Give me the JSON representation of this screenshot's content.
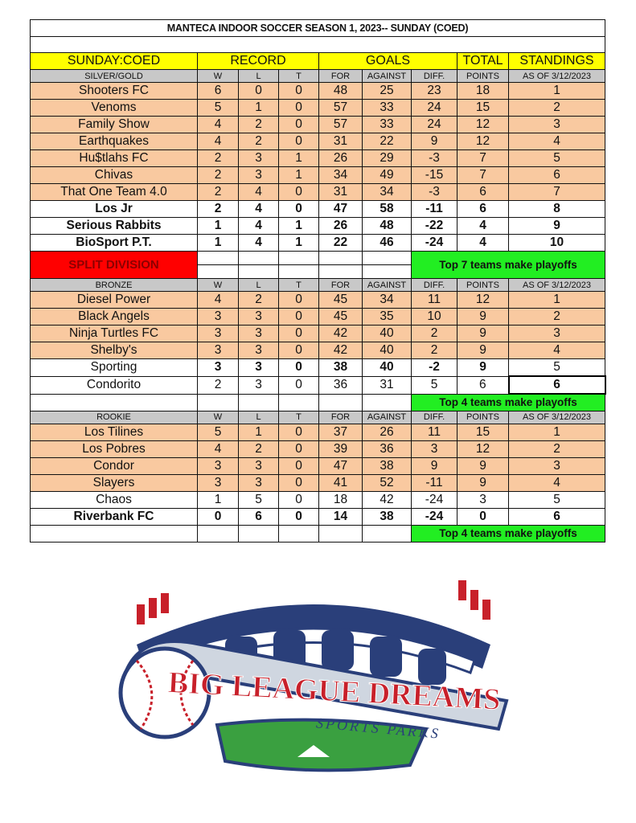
{
  "title": "MANTECA INDOOR SOCCER SEASON 1, 2023-- SUNDAY (COED)",
  "header": {
    "league": "SUNDAY:COED",
    "record": "RECORD",
    "goals": "GOALS",
    "total": "TOTAL",
    "standings": "STANDINGS"
  },
  "columns": [
    "W",
    "L",
    "T",
    "FOR",
    "AGAINST",
    "DIFF.",
    "POINTS",
    "AS OF 3/12/2023"
  ],
  "divisions": [
    {
      "name": "SILVER/GOLD",
      "teams": [
        {
          "team": "Shooters FC",
          "w": 6,
          "l": 0,
          "t": 0,
          "for": 48,
          "against": 25,
          "diff": 23,
          "points": 18,
          "standing": 1,
          "style": "orange"
        },
        {
          "team": "Venoms",
          "w": 5,
          "l": 1,
          "t": 0,
          "for": 57,
          "against": 33,
          "diff": 24,
          "points": 15,
          "standing": 2,
          "style": "orange"
        },
        {
          "team": "Family Show",
          "w": 4,
          "l": 2,
          "t": 0,
          "for": 57,
          "against": 33,
          "diff": 24,
          "points": 12,
          "standing": 3,
          "style": "orange"
        },
        {
          "team": "Earthquakes",
          "w": 4,
          "l": 2,
          "t": 0,
          "for": 31,
          "against": 22,
          "diff": 9,
          "points": 12,
          "standing": 4,
          "style": "orange"
        },
        {
          "team": "Hu$tlahs FC",
          "w": 2,
          "l": 3,
          "t": 1,
          "for": 26,
          "against": 29,
          "diff": -3,
          "points": 7,
          "standing": 5,
          "style": "orange"
        },
        {
          "team": "Chivas",
          "w": 2,
          "l": 3,
          "t": 1,
          "for": 34,
          "against": 49,
          "diff": -15,
          "points": 7,
          "standing": 6,
          "style": "orange"
        },
        {
          "team": "That One Team 4.0",
          "w": 2,
          "l": 4,
          "t": 0,
          "for": 31,
          "against": 34,
          "diff": -3,
          "points": 6,
          "standing": 7,
          "style": "orange"
        },
        {
          "team": "Los Jr",
          "w": 2,
          "l": 4,
          "t": 0,
          "for": 47,
          "against": 58,
          "diff": -11,
          "points": 6,
          "standing": 8,
          "style": "bold"
        },
        {
          "team": "Serious Rabbits",
          "w": 1,
          "l": 4,
          "t": 1,
          "for": 26,
          "against": 48,
          "diff": -22,
          "points": 4,
          "standing": 9,
          "style": "bold"
        },
        {
          "team": "BioSport P.T.",
          "w": 1,
          "l": 4,
          "t": 1,
          "for": 22,
          "against": 46,
          "diff": -24,
          "points": 4,
          "standing": 10,
          "style": "bold"
        }
      ],
      "split_label": "SPLIT DIVISION",
      "note": "Top 7 teams make playoffs"
    },
    {
      "name": "BRONZE",
      "teams": [
        {
          "team": "Diesel Power",
          "w": 4,
          "l": 2,
          "t": 0,
          "for": 45,
          "against": 34,
          "diff": 11,
          "points": 12,
          "standing": 1,
          "style": "orange"
        },
        {
          "team": "Black Angels",
          "w": 3,
          "l": 3,
          "t": 0,
          "for": 45,
          "against": 35,
          "diff": 10,
          "points": 9,
          "standing": 2,
          "style": "orange"
        },
        {
          "team": "Ninja Turtles FC",
          "w": 3,
          "l": 3,
          "t": 0,
          "for": 42,
          "against": 40,
          "diff": 2,
          "points": 9,
          "standing": 3,
          "style": "orange"
        },
        {
          "team": "Shelby's",
          "w": 3,
          "l": 3,
          "t": 0,
          "for": 42,
          "against": 40,
          "diff": 2,
          "points": 9,
          "standing": 4,
          "style": "orange"
        },
        {
          "team": "Sporting",
          "w": 3,
          "l": 3,
          "t": 0,
          "for": 38,
          "against": 40,
          "diff": -2,
          "points": 9,
          "standing": 5,
          "style": "bold-no-standing"
        },
        {
          "team": "Condorito",
          "w": 2,
          "l": 3,
          "t": 0,
          "for": 36,
          "against": 31,
          "diff": 5,
          "points": 6,
          "standing": 6,
          "style": "plain-thick-standing"
        }
      ],
      "note": "Top 4 teams make playoffs"
    },
    {
      "name": "ROOKIE",
      "teams": [
        {
          "team": "Los Tilines",
          "w": 5,
          "l": 1,
          "t": 0,
          "for": 37,
          "against": 26,
          "diff": 11,
          "points": 15,
          "standing": 1,
          "style": "orange"
        },
        {
          "team": "Los Pobres",
          "w": 4,
          "l": 2,
          "t": 0,
          "for": 39,
          "against": 36,
          "diff": 3,
          "points": 12,
          "standing": 2,
          "style": "orange"
        },
        {
          "team": "Condor",
          "w": 3,
          "l": 3,
          "t": 0,
          "for": 47,
          "against": 38,
          "diff": 9,
          "points": 9,
          "standing": 3,
          "style": "orange"
        },
        {
          "team": "Slayers",
          "w": 3,
          "l": 3,
          "t": 0,
          "for": 41,
          "against": 52,
          "diff": -11,
          "points": 9,
          "standing": 4,
          "style": "orange"
        },
        {
          "team": "Chaos",
          "w": 1,
          "l": 5,
          "t": 0,
          "for": 18,
          "against": 42,
          "diff": -24,
          "points": 3,
          "standing": 5,
          "style": "plain"
        },
        {
          "team": "Riverbank FC",
          "w": 0,
          "l": 6,
          "t": 0,
          "for": 14,
          "against": 38,
          "diff": -24,
          "points": 0,
          "standing": 6,
          "style": "bold"
        }
      ],
      "note": "Top 4 teams make playoffs"
    }
  ],
  "logo": {
    "line1": "BIG LEAGUE DREAMS",
    "line2": "SPORTS PARKS"
  },
  "colors": {
    "header": "#ffff00",
    "subheader": "#c8c8c8",
    "top_rows": "#f9c9a0",
    "split": "#ff0000",
    "note": "#22ee22"
  }
}
